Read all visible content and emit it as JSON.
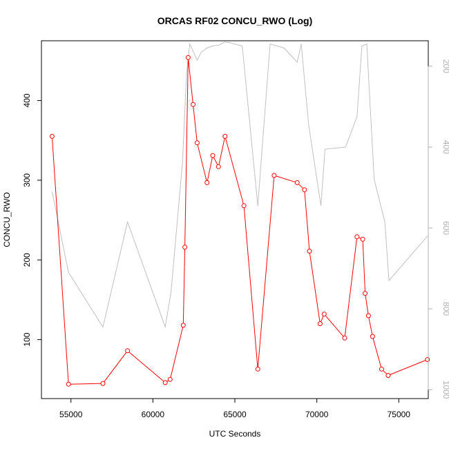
{
  "chart_data": {
    "type": "line",
    "title": "ORCAS RF02 CONCU_RWO (Log)",
    "xlabel": "UTC Seconds",
    "ylabel": "CONCU_RWO",
    "xlim": [
      53200,
      76800
    ],
    "ylim": [
      26,
      475
    ],
    "y2lim": [
      1022,
      137
    ],
    "y2_reversed": true,
    "grid": false,
    "colors": {
      "primary": "#ff0000",
      "secondary": "#c0c0c0",
      "axis": "#000000",
      "secondary_axis": "#b0b0b0"
    },
    "x_ticks": [
      55000,
      60000,
      65000,
      70000,
      75000
    ],
    "x_tick_labels": [
      "55000",
      "60000",
      "65000",
      "70000",
      "75000"
    ],
    "y_ticks": [
      100,
      200,
      300,
      400
    ],
    "y_tick_labels": [
      "100",
      "200",
      "300",
      "400"
    ],
    "y2_ticks": [
      200,
      400,
      600,
      800,
      1000
    ],
    "y2_tick_labels": [
      "200",
      "400",
      "600",
      "800",
      "1000"
    ],
    "series": [
      {
        "axis": "left",
        "style": "line+points",
        "x": [
          53850,
          54850,
          56950,
          58450,
          60750,
          61050,
          61850,
          61950,
          62150,
          62450,
          62700,
          63300,
          63650,
          64000,
          64400,
          65550,
          66400,
          67400,
          68800,
          69250,
          69550,
          70200,
          70450,
          71700,
          72450,
          72800,
          72950,
          73150,
          73400,
          73950,
          74350,
          76750
        ],
        "y": [
          355,
          44,
          45,
          86,
          46,
          50,
          118,
          216,
          454,
          395,
          347,
          297,
          331,
          317,
          355,
          268,
          63,
          306,
          297,
          288,
          211,
          120,
          132,
          102,
          229,
          226,
          158,
          130,
          104,
          63,
          55,
          75
        ]
      },
      {
        "axis": "right",
        "style": "line",
        "x": [
          53850,
          54850,
          56950,
          58450,
          60750,
          61100,
          61800,
          62050,
          62250,
          62700,
          62950,
          63300,
          63650,
          64000,
          64400,
          64700,
          65450,
          66400,
          67150,
          68000,
          68800,
          69050,
          69500,
          70250,
          70500,
          71750,
          72450,
          72750,
          73050,
          73500,
          74150,
          74400,
          76750
        ],
        "y": [
          510,
          710,
          845,
          585,
          845,
          760,
          440,
          220,
          145,
          185,
          165,
          155,
          150,
          148,
          140,
          142,
          150,
          545,
          145,
          155,
          190,
          145,
          345,
          545,
          405,
          400,
          325,
          150,
          145,
          480,
          585,
          730,
          620
        ]
      }
    ]
  }
}
